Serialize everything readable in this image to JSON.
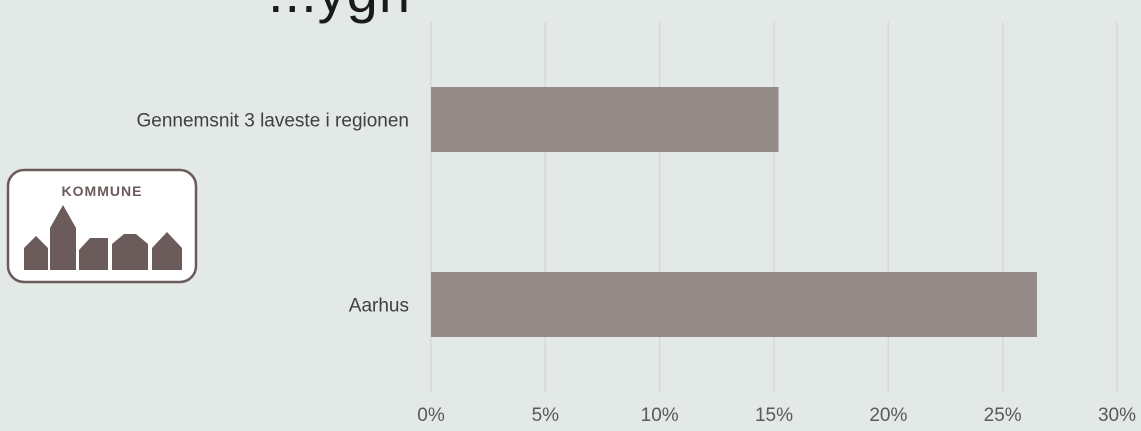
{
  "title_fragment": "...ygn",
  "logo": {
    "text": "KOMMUNE",
    "color": "#6b5b5a"
  },
  "colors": {
    "bar": "#958b89",
    "grid": "#d4d9d6",
    "axis_text": "#595959",
    "label_text": "#404040"
  },
  "chart_data": {
    "type": "bar",
    "orientation": "horizontal",
    "categories": [
      "Gennemsnit 3 laveste i regionen",
      "Aarhus"
    ],
    "values": [
      0.152,
      0.265
    ],
    "xlim": [
      0,
      0.3
    ],
    "xticks": [
      0,
      0.05,
      0.1,
      0.15,
      0.2,
      0.25,
      0.3
    ],
    "xtick_labels": [
      "0%",
      "5%",
      "10%",
      "15%",
      "20%",
      "25%",
      "30%"
    ],
    "grid": true,
    "xlabel": "",
    "ylabel": ""
  }
}
